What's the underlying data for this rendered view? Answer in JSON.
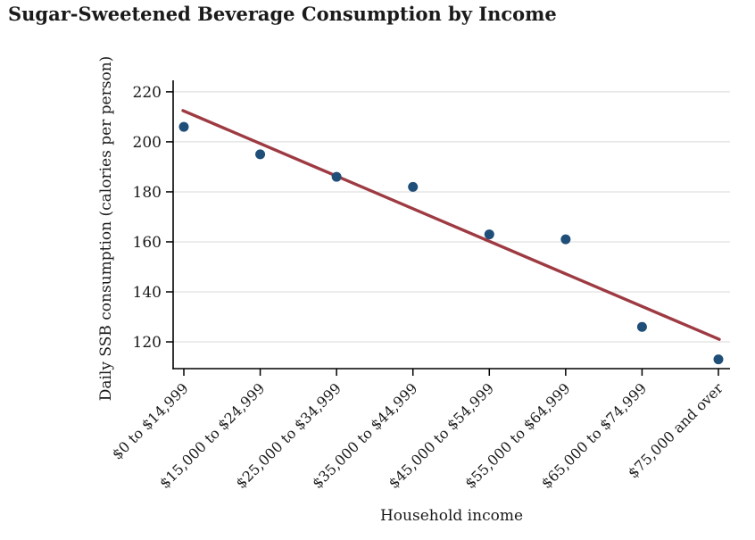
{
  "title": "Sugar-Sweetened Beverage Consumption by Income",
  "chart_data": {
    "type": "scatter",
    "title": "Sugar-Sweetened Beverage Consumption by Income",
    "xlabel": "Household income",
    "ylabel": "Daily SSB consumption (calories per person)",
    "categories": [
      "$0 to $14,999",
      "$15,000 to $24,999",
      "$25,000 to $34,999",
      "$35,000 to $44,999",
      "$45,000 to $54,999",
      "$55,000 to $64,999",
      "$65,000 to $74,999",
      "$75,000 and over"
    ],
    "values": [
      206,
      195,
      186,
      182,
      163,
      161,
      126,
      113
    ],
    "yticks": [
      120,
      140,
      160,
      180,
      200,
      220
    ],
    "ylim": [
      109.3,
      224.6
    ],
    "grid": "horizontal",
    "legend": "none",
    "trend_line": {
      "start_category_index": 0,
      "end_category_index": 7,
      "start_value": 212.5,
      "end_value": 121
    },
    "colors": {
      "point": "#1f4e79",
      "trend": "#9e3a42",
      "grid": "#d9d9d9",
      "axis": "#000000",
      "text": "#1a1a1a"
    }
  }
}
